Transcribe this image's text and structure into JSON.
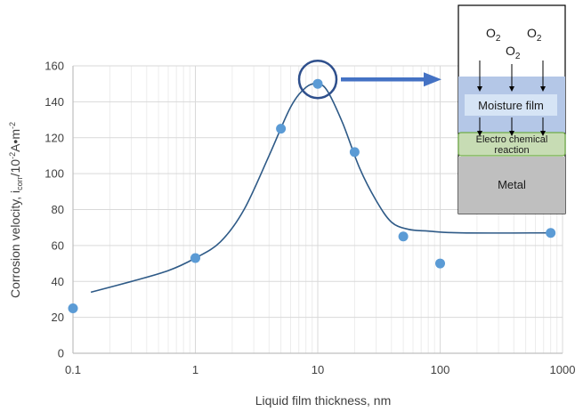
{
  "chart_data": {
    "type": "scatter",
    "x_scale": "log",
    "xlim": [
      0.1,
      1000
    ],
    "ylim": [
      0,
      160
    ],
    "grid": true,
    "xlabel": "Liquid film thickness, nm",
    "ylabel_parts": {
      "prefix": "Corrosion velocity, i",
      "subscript": "corr",
      "middle": "/10",
      "superscript": "-2",
      "suffix": "A•m",
      "superscript2": "-2"
    },
    "x_ticks": [
      {
        "value": 0.1,
        "label": "0.1"
      },
      {
        "value": 1,
        "label": "1"
      },
      {
        "value": 10,
        "label": "10"
      },
      {
        "value": 100,
        "label": "100"
      },
      {
        "value": 1000,
        "label": "1000"
      }
    ],
    "y_ticks": [
      0,
      20,
      40,
      60,
      80,
      100,
      120,
      140,
      160
    ],
    "points": [
      {
        "x": 0.1,
        "y": 25
      },
      {
        "x": 1,
        "y": 53
      },
      {
        "x": 5,
        "y": 125
      },
      {
        "x": 10,
        "y": 150
      },
      {
        "x": 20,
        "y": 112
      },
      {
        "x": 50,
        "y": 65
      },
      {
        "x": 100,
        "y": 50
      },
      {
        "x": 800,
        "y": 67
      }
    ],
    "curve": [
      {
        "x": 0.14,
        "y": 34
      },
      {
        "x": 0.3,
        "y": 40
      },
      {
        "x": 0.6,
        "y": 46
      },
      {
        "x": 1,
        "y": 53
      },
      {
        "x": 1.6,
        "y": 62
      },
      {
        "x": 2.5,
        "y": 80
      },
      {
        "x": 4,
        "y": 110
      },
      {
        "x": 6,
        "y": 137
      },
      {
        "x": 8,
        "y": 148
      },
      {
        "x": 10,
        "y": 150
      },
      {
        "x": 12,
        "y": 146
      },
      {
        "x": 16,
        "y": 128
      },
      {
        "x": 22,
        "y": 103
      },
      {
        "x": 30,
        "y": 85
      },
      {
        "x": 40,
        "y": 73
      },
      {
        "x": 55,
        "y": 69
      },
      {
        "x": 80,
        "y": 68
      },
      {
        "x": 150,
        "y": 67
      },
      {
        "x": 800,
        "y": 67
      }
    ],
    "highlight": {
      "x": 10,
      "y": 150
    },
    "colors": {
      "points": "#5b9bd5",
      "curve": "#2e5a87",
      "grid": "#d9d9d9",
      "axis": "#bfbfbf",
      "highlight": "#2e4f8c",
      "arrow": "#4472c4"
    }
  },
  "inset": {
    "o2_label": "O",
    "o2_sub": "2",
    "moisture_label": "Moisture film",
    "reaction_line1": "Electro chemical",
    "reaction_line2": "reaction",
    "metal_label": "Metal",
    "colors": {
      "moisture_band": "#b4c7e7",
      "moisture_label_bg": "#d6e4f5",
      "reaction_fill": "#c7dcb4",
      "reaction_border": "#70ad47",
      "metal": "#bfbfbf"
    }
  }
}
